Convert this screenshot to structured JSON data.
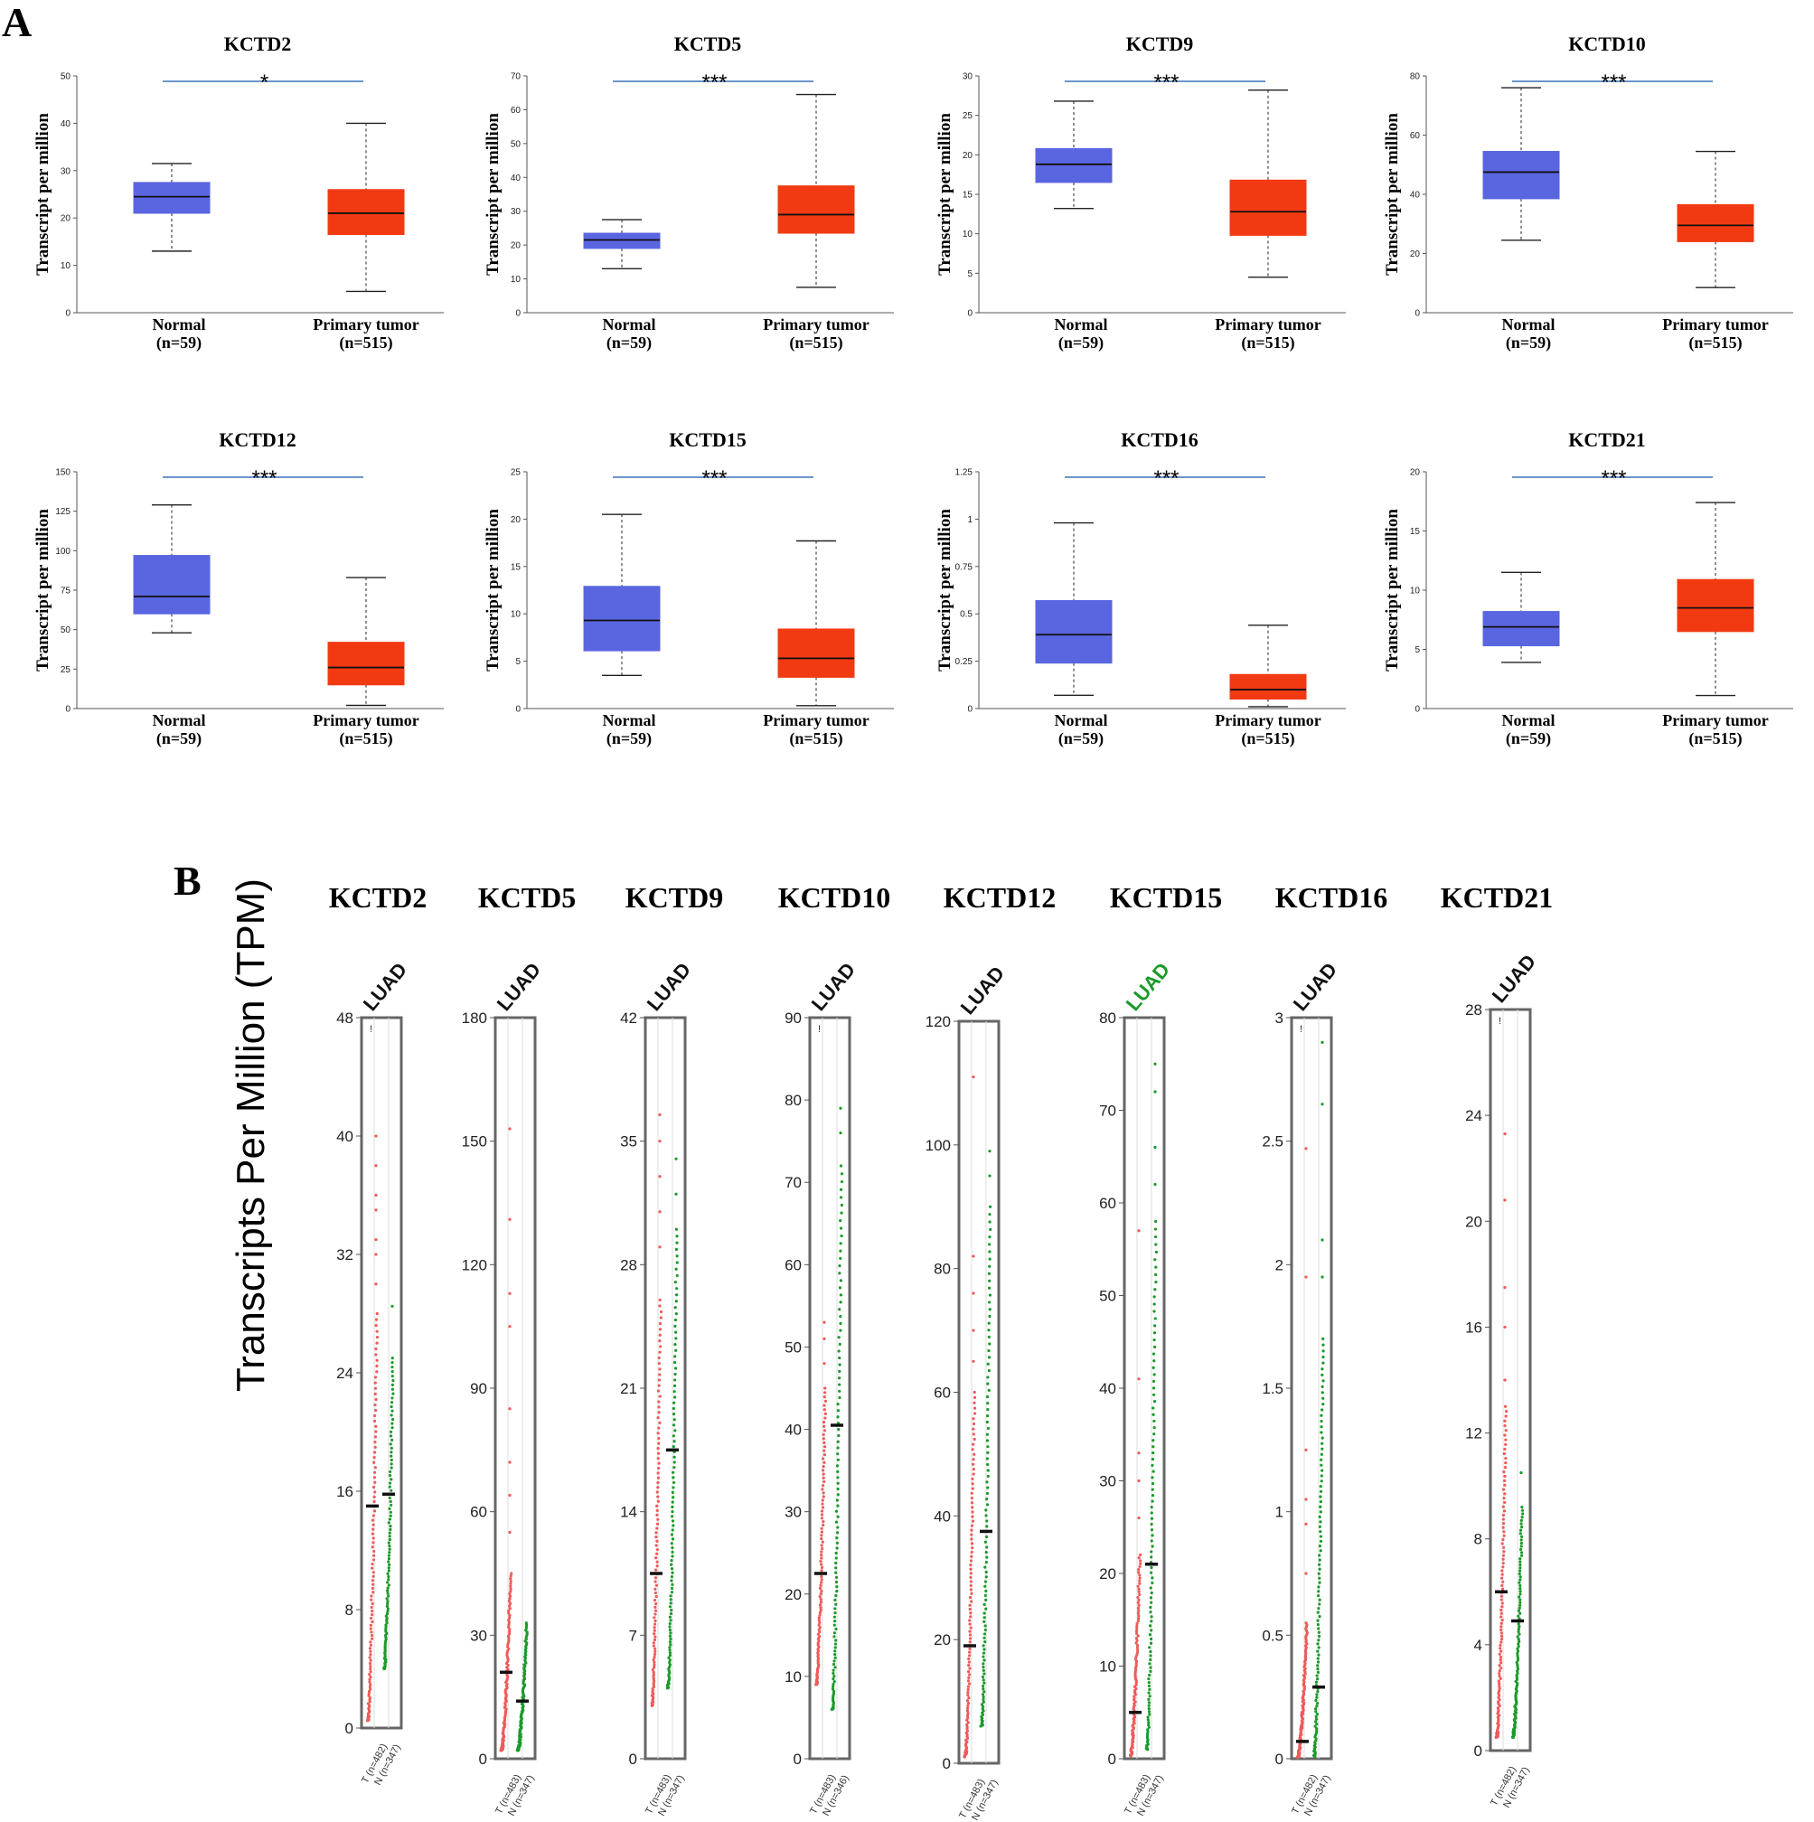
{
  "panel_labels": {
    "a": "A",
    "b": "B"
  },
  "colors": {
    "normal_box": "#5a65e0",
    "tumor_box": "#f23a12",
    "sig_line": "#3a72b8",
    "tumor_dots": "#f05a5a",
    "normal_dots": "#1a9a2a",
    "highlight_cancer": "#1a9a2a"
  },
  "chart_data": [
    {
      "type": "box",
      "panel": "A",
      "title": "KCTD2",
      "ylabel": "Transcript per million",
      "categories": [
        "Normal",
        "Primary tumor"
      ],
      "category_n": [
        "(n=59)",
        "(n=515)"
      ],
      "ylim": [
        0,
        50
      ],
      "yticks": [
        0,
        10,
        20,
        30,
        40,
        50
      ],
      "ytick_labels": [
        "0",
        "10",
        "20",
        "30",
        "40",
        "50"
      ],
      "significance": "*",
      "boxes": [
        {
          "min": 13,
          "q1": 21,
          "median": 24.5,
          "q3": 27.5,
          "max": 31.5
        },
        {
          "min": 4.5,
          "q1": 16.5,
          "median": 21,
          "q3": 26,
          "max": 40
        }
      ]
    },
    {
      "type": "box",
      "panel": "A",
      "title": "KCTD5",
      "ylabel": "Transcript per million",
      "categories": [
        "Normal",
        "Primary tumor"
      ],
      "category_n": [
        "(n=59)",
        "(n=515)"
      ],
      "ylim": [
        0,
        70
      ],
      "yticks": [
        0,
        10,
        20,
        30,
        40,
        50,
        60,
        70
      ],
      "ytick_labels": [
        "0",
        "10",
        "20",
        "30",
        "40",
        "50",
        "60",
        "70"
      ],
      "significance": "***",
      "boxes": [
        {
          "min": 13,
          "q1": 19,
          "median": 21.5,
          "q3": 23.5,
          "max": 27.5
        },
        {
          "min": 7.5,
          "q1": 23.5,
          "median": 29,
          "q3": 37.5,
          "max": 64.5
        }
      ]
    },
    {
      "type": "box",
      "panel": "A",
      "title": "KCTD9",
      "ylabel": "Transcript per million",
      "categories": [
        "Normal",
        "Primary tumor"
      ],
      "category_n": [
        "(n=59)",
        "(n=515)"
      ],
      "ylim": [
        0,
        30
      ],
      "yticks": [
        0,
        5,
        10,
        15,
        20,
        25,
        30
      ],
      "ytick_labels": [
        "0",
        "5",
        "10",
        "15",
        "20",
        "25",
        "30"
      ],
      "significance": "***",
      "boxes": [
        {
          "min": 13.2,
          "q1": 16.5,
          "median": 18.8,
          "q3": 20.8,
          "max": 26.8
        },
        {
          "min": 4.5,
          "q1": 9.8,
          "median": 12.8,
          "q3": 16.8,
          "max": 28.2
        }
      ]
    },
    {
      "type": "box",
      "panel": "A",
      "title": "KCTD10",
      "ylabel": "Transcript per million",
      "categories": [
        "Normal",
        "Primary tumor"
      ],
      "category_n": [
        "(n=59)",
        "(n=515)"
      ],
      "ylim": [
        0,
        80
      ],
      "yticks": [
        0,
        20,
        40,
        60,
        80
      ],
      "ytick_labels": [
        "0",
        "20",
        "40",
        "60",
        "80"
      ],
      "significance": "***",
      "boxes": [
        {
          "min": 24.5,
          "q1": 38.5,
          "median": 47.5,
          "q3": 54.5,
          "max": 76
        },
        {
          "min": 8.5,
          "q1": 24,
          "median": 29.5,
          "q3": 36.5,
          "max": 54.5
        }
      ]
    },
    {
      "type": "box",
      "panel": "A",
      "title": "KCTD12",
      "ylabel": "Transcript per million",
      "categories": [
        "Normal",
        "Primary tumor"
      ],
      "category_n": [
        "(n=59)",
        "(n=515)"
      ],
      "ylim": [
        0,
        150
      ],
      "yticks": [
        0,
        25,
        50,
        75,
        100,
        125,
        150
      ],
      "ytick_labels": [
        "0",
        "25",
        "50",
        "75",
        "100",
        "125",
        "150"
      ],
      "significance": "***",
      "boxes": [
        {
          "min": 48,
          "q1": 60,
          "median": 71,
          "q3": 97,
          "max": 129
        },
        {
          "min": 2,
          "q1": 15,
          "median": 26,
          "q3": 42,
          "max": 83
        }
      ]
    },
    {
      "type": "box",
      "panel": "A",
      "title": "KCTD15",
      "ylabel": "Transcript per million",
      "categories": [
        "Normal",
        "Primary tumor"
      ],
      "category_n": [
        "(n=59)",
        "(n=515)"
      ],
      "ylim": [
        0,
        25
      ],
      "yticks": [
        0,
        5,
        10,
        15,
        20,
        25
      ],
      "ytick_labels": [
        "0",
        "5",
        "10",
        "15",
        "20",
        "25"
      ],
      "significance": "***",
      "boxes": [
        {
          "min": 3.5,
          "q1": 6.1,
          "median": 9.3,
          "q3": 12.9,
          "max": 20.5
        },
        {
          "min": 0.3,
          "q1": 3.3,
          "median": 5.3,
          "q3": 8.4,
          "max": 17.7
        }
      ]
    },
    {
      "type": "box",
      "panel": "A",
      "title": "KCTD16",
      "ylabel": "Transcript per million",
      "categories": [
        "Normal",
        "Primary tumor"
      ],
      "category_n": [
        "(n=59)",
        "(n=515)"
      ],
      "ylim": [
        0,
        1.25
      ],
      "yticks": [
        0,
        0.25,
        0.5,
        0.75,
        1,
        1.25
      ],
      "ytick_labels": [
        "0",
        "0.25",
        "0.5",
        "0.75",
        "1",
        "1.25"
      ],
      "significance": "***",
      "boxes": [
        {
          "min": 0.07,
          "q1": 0.24,
          "median": 0.39,
          "q3": 0.57,
          "max": 0.98
        },
        {
          "min": 0.01,
          "q1": 0.05,
          "median": 0.1,
          "q3": 0.18,
          "max": 0.44
        }
      ]
    },
    {
      "type": "box",
      "panel": "A",
      "title": "KCTD21",
      "ylabel": "Transcript per million",
      "categories": [
        "Normal",
        "Primary tumor"
      ],
      "category_n": [
        "(n=59)",
        "(n=515)"
      ],
      "ylim": [
        0,
        20
      ],
      "yticks": [
        0,
        5,
        10,
        15,
        20
      ],
      "ytick_labels": [
        "0",
        "5",
        "10",
        "15",
        "20"
      ],
      "significance": "***",
      "boxes": [
        {
          "min": 3.9,
          "q1": 5.3,
          "median": 6.9,
          "q3": 8.2,
          "max": 11.5
        },
        {
          "min": 1.1,
          "q1": 6.5,
          "median": 8.5,
          "q3": 10.9,
          "max": 17.4
        }
      ]
    },
    {
      "type": "scatter",
      "panel": "B",
      "title": "KCTD2",
      "cancer": "LUAD",
      "cancer_highlight": false,
      "ylim": [
        0,
        48
      ],
      "yticks": [
        0,
        8,
        16,
        24,
        32,
        40,
        48
      ],
      "ytick_labels": [
        "0",
        "8",
        "16",
        "24",
        "32",
        "40",
        "48"
      ],
      "groups": [
        "T (n=482)",
        "N (n=347)"
      ],
      "tumor": {
        "median": 15,
        "low": 0.5,
        "upper": 28,
        "outliers": [
          30,
          32,
          33,
          35,
          36,
          38,
          40
        ]
      },
      "normal": {
        "median": 15.8,
        "low": 4,
        "upper": 25,
        "outliers": [
          28.5
        ]
      },
      "t_outlier_label": "!"
    },
    {
      "type": "scatter",
      "panel": "B",
      "title": "KCTD5",
      "cancer": "LUAD",
      "cancer_highlight": false,
      "ylim": [
        0,
        180
      ],
      "yticks": [
        0,
        30,
        60,
        90,
        120,
        150,
        180
      ],
      "ytick_labels": [
        "0",
        "30",
        "60",
        "90",
        "120",
        "150",
        "180"
      ],
      "groups": [
        "T (n=483)",
        "N (n=347)"
      ],
      "tumor": {
        "median": 21,
        "low": 2,
        "upper": 45,
        "outliers": [
          55,
          64,
          72,
          85,
          105,
          113,
          131,
          153
        ]
      },
      "normal": {
        "median": 14,
        "low": 2,
        "upper": 33,
        "outliers": []
      },
      "t_outlier_label": ""
    },
    {
      "type": "scatter",
      "panel": "B",
      "title": "KCTD9",
      "cancer": "LUAD",
      "cancer_highlight": false,
      "ylim": [
        0,
        42
      ],
      "yticks": [
        0,
        7,
        14,
        21,
        28,
        35,
        42
      ],
      "ytick_labels": [
        "0",
        "7",
        "14",
        "21",
        "28",
        "35",
        "42"
      ],
      "groups": [
        "T (n=483)",
        "N (n=347)"
      ],
      "tumor": {
        "median": 10.5,
        "low": 3,
        "upper": 26,
        "outliers": [
          29,
          31,
          33,
          35,
          36.5
        ]
      },
      "normal": {
        "median": 17.5,
        "low": 4,
        "upper": 30,
        "outliers": [
          32,
          34
        ]
      },
      "t_outlier_label": ""
    },
    {
      "type": "scatter",
      "panel": "B",
      "title": "KCTD10",
      "cancer": "LUAD",
      "cancer_highlight": false,
      "ylim": [
        0,
        90
      ],
      "yticks": [
        0,
        10,
        20,
        30,
        40,
        50,
        60,
        70,
        80,
        90
      ],
      "ytick_labels": [
        "0",
        "10",
        "20",
        "30",
        "40",
        "50",
        "60",
        "70",
        "80",
        "90"
      ],
      "groups": [
        "T (n=483)",
        "N (n=346)"
      ],
      "tumor": {
        "median": 22.5,
        "low": 9,
        "upper": 45,
        "outliers": [
          48,
          51,
          53
        ]
      },
      "normal": {
        "median": 40.5,
        "low": 6,
        "upper": 72,
        "outliers": [
          76,
          79
        ]
      },
      "t_outlier_label": "!"
    },
    {
      "type": "scatter",
      "panel": "B",
      "title": "KCTD12",
      "cancer": "LUAD",
      "cancer_highlight": false,
      "ylim": [
        0,
        120
      ],
      "yticks": [
        0,
        20,
        40,
        60,
        80,
        100,
        120
      ],
      "ytick_labels": [
        "0",
        "20",
        "40",
        "60",
        "80",
        "100",
        "120"
      ],
      "groups": [
        "T (n=483)",
        "N (n=347)"
      ],
      "tumor": {
        "median": 19,
        "low": 1,
        "upper": 60,
        "outliers": [
          65,
          70,
          76,
          82,
          111
        ]
      },
      "normal": {
        "median": 37.5,
        "low": 6,
        "upper": 90,
        "outliers": [
          95,
          99
        ]
      },
      "t_outlier_label": ""
    },
    {
      "type": "scatter",
      "panel": "B",
      "title": "KCTD15",
      "cancer": "LUAD",
      "cancer_highlight": true,
      "ylim": [
        0,
        80
      ],
      "yticks": [
        0,
        10,
        20,
        30,
        40,
        50,
        60,
        70,
        80
      ],
      "ytick_labels": [
        "0",
        "10",
        "20",
        "30",
        "40",
        "50",
        "60",
        "70",
        "80"
      ],
      "groups": [
        "T (n=483)",
        "N (n=347)"
      ],
      "tumor": {
        "median": 5,
        "low": 0.3,
        "upper": 22,
        "outliers": [
          26,
          30,
          33,
          41,
          57
        ]
      },
      "normal": {
        "median": 21,
        "low": 1,
        "upper": 58,
        "outliers": [
          62,
          66,
          72,
          75
        ]
      },
      "t_outlier_label": ""
    },
    {
      "type": "scatter",
      "panel": "B",
      "title": "KCTD16",
      "cancer": "LUAD",
      "cancer_highlight": false,
      "ylim": [
        0,
        3
      ],
      "yticks": [
        0,
        0.5,
        1,
        1.5,
        2,
        2.5,
        3
      ],
      "ytick_labels": [
        "0",
        "0.5",
        "1",
        "1.5",
        "2",
        "2.5",
        "3"
      ],
      "groups": [
        "T (n=482)",
        "N (n=347)"
      ],
      "tumor": {
        "median": 0.07,
        "low": 0.005,
        "upper": 0.55,
        "outliers": [
          0.75,
          0.95,
          1.05,
          1.25,
          1.95,
          2.47
        ]
      },
      "normal": {
        "median": 0.29,
        "low": 0.01,
        "upper": 1.7,
        "outliers": [
          1.95,
          2.1,
          2.65,
          2.9
        ]
      },
      "t_outlier_label": "!"
    },
    {
      "type": "scatter",
      "panel": "B",
      "title": "KCTD21",
      "cancer": "LUAD",
      "cancer_highlight": false,
      "ylim": [
        0,
        28
      ],
      "yticks": [
        0,
        4,
        8,
        12,
        16,
        20,
        24,
        28
      ],
      "ytick_labels": [
        "0",
        "4",
        "8",
        "12",
        "16",
        "20",
        "24",
        "28"
      ],
      "groups": [
        "T (n=482)",
        "N (n=347)"
      ],
      "tumor": {
        "median": 6,
        "low": 0.5,
        "upper": 13,
        "outliers": [
          14,
          16,
          17.5,
          20.8,
          23.3
        ]
      },
      "normal": {
        "median": 4.9,
        "low": 0.5,
        "upper": 9.2,
        "outliers": [
          10.5
        ]
      },
      "t_outlier_label": "!"
    }
  ],
  "panel_b_ylabel": "Transcripts Per Million (TPM)"
}
